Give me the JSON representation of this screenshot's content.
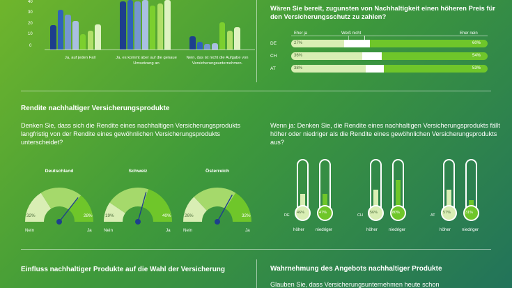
{
  "top_left_chart": {
    "y_ticks": [
      "40",
      "30",
      "20",
      "10",
      "0"
    ],
    "groups": [
      {
        "label": "Ja, auf jeden Fall",
        "values": [
          22,
          36,
          32,
          26,
          14,
          17,
          23
        ]
      },
      {
        "label": "Ja, es kommt aber auf die genaue Umsetzung an",
        "values": [
          44,
          48,
          44,
          46,
          40,
          42,
          46
        ]
      },
      {
        "label": "Nein, das ist nicht die Aufgabe von Versicherungsunternehmen.",
        "values": [
          12,
          7,
          5,
          6,
          25,
          17,
          20
        ]
      }
    ],
    "colors": [
      "#1d3f8c",
      "#2f63b8",
      "#7597cf",
      "#a9bfe2",
      "#7ccf2e",
      "#b2e06a",
      "#dff3c2"
    ]
  },
  "price_question": {
    "title": "Wären Sie bereit, zugunsten von Nachhaltigkeit einen höheren Preis für den Versicherungsschutz zu zahlen?",
    "legend": {
      "yes": "Eher ja",
      "unknown": "Weiß nicht",
      "no": "Eher nein"
    },
    "rows": [
      {
        "country": "DE",
        "yes_label": "27%",
        "no_label": "60%",
        "yes": 27,
        "unknown": 13,
        "no": 60
      },
      {
        "country": "CH",
        "yes_label": "36%",
        "no_label": "54%",
        "yes": 36,
        "unknown": 10,
        "no": 54
      },
      {
        "country": "AT",
        "yes_label": "38%",
        "no_label": "53%",
        "yes": 38,
        "unknown": 9,
        "no": 53
      }
    ]
  },
  "rendite": {
    "title": "Rendite nachhaltiger Versicherungsprodukte",
    "q1": "Denken Sie, dass sich die Rendite eines nachhaltigen Versicherungsprodukts langfristig von der Rendite eines gewöhnlichen Versicherungsprodukts unterscheidet?",
    "q2": "Wenn ja: Denken Sie, die Rendite eines nachhaltigen Versicherungsprodukts fällt höher oder niedriger als die Rendite eines gewöhnlichen Versicherungsprodukts aus?",
    "gauges": [
      {
        "country": "Deutschland",
        "nein": "32%",
        "ja": "28%",
        "nein_v": 32,
        "ja_v": 28
      },
      {
        "country": "Schweiz",
        "nein": "19%",
        "ja": "40%",
        "nein_v": 19,
        "ja_v": 40
      },
      {
        "country": "Österreich",
        "nein": "26%",
        "ja": "32%",
        "nein_v": 26,
        "ja_v": 32
      }
    ],
    "gauge_left": "Nein",
    "gauge_right": "Ja",
    "thermos": [
      {
        "country": "DE",
        "high": "46%",
        "low": "47%",
        "high_v": 46,
        "low_v": 47
      },
      {
        "country": "CH",
        "high": "56%",
        "low": "80%",
        "high_v": 56,
        "low_v": 80
      },
      {
        "country": "AT",
        "high": "57%",
        "low": "31%",
        "high_v": 57,
        "low_v": 31
      }
    ],
    "thermo_high": "höher",
    "thermo_low": "niedriger"
  },
  "bottom": {
    "left_title": "Einfluss nachhaltiger Produkte auf die Wahl der Versicherung",
    "right_title": "Wahrnehmung des Angebots nachhaltiger Produkte",
    "right_text": "Glauben Sie, dass Versicherungsunternehmen heute schon"
  }
}
